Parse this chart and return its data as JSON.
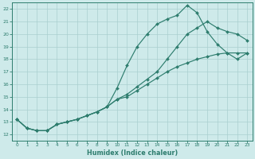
{
  "xlabel": "Humidex (Indice chaleur)",
  "xlim": [
    -0.5,
    23.5
  ],
  "ylim": [
    11.5,
    22.5
  ],
  "xticks": [
    0,
    1,
    2,
    3,
    4,
    5,
    6,
    7,
    8,
    9,
    10,
    11,
    12,
    13,
    14,
    15,
    16,
    17,
    18,
    19,
    20,
    21,
    22,
    23
  ],
  "yticks": [
    12,
    13,
    14,
    15,
    16,
    17,
    18,
    19,
    20,
    21,
    22
  ],
  "line_color": "#2e7d6e",
  "bg_color": "#ceeaea",
  "grid_color": "#aacfcf",
  "line1_x": [
    0,
    1,
    2,
    3,
    4,
    5,
    6,
    7,
    8,
    9,
    10,
    11,
    12,
    13,
    14,
    15,
    16,
    17,
    18,
    19,
    20,
    21,
    22,
    23
  ],
  "line1_y": [
    13.2,
    12.5,
    12.3,
    12.3,
    12.8,
    13.0,
    13.2,
    13.5,
    13.8,
    14.2,
    15.7,
    17.5,
    19.0,
    20.0,
    20.8,
    21.2,
    21.5,
    22.3,
    21.7,
    20.2,
    19.2,
    18.5,
    18.0,
    18.5
  ],
  "line2_x": [
    0,
    1,
    2,
    3,
    4,
    5,
    6,
    7,
    8,
    9,
    10,
    11,
    12,
    13,
    14,
    15,
    16,
    17,
    18,
    19,
    20,
    21,
    22,
    23
  ],
  "line2_y": [
    13.2,
    12.5,
    12.3,
    12.3,
    12.8,
    13.0,
    13.2,
    13.5,
    13.8,
    14.2,
    14.8,
    15.2,
    15.8,
    16.4,
    17.0,
    18.0,
    19.0,
    20.0,
    20.5,
    21.0,
    20.5,
    20.2,
    20.0,
    19.5
  ],
  "line3_x": [
    0,
    1,
    2,
    3,
    4,
    5,
    6,
    7,
    8,
    9,
    10,
    11,
    12,
    13,
    14,
    15,
    16,
    17,
    18,
    19,
    20,
    21,
    22,
    23
  ],
  "line3_y": [
    13.2,
    12.5,
    12.3,
    12.3,
    12.8,
    13.0,
    13.2,
    13.5,
    13.8,
    14.2,
    14.8,
    15.0,
    15.5,
    16.0,
    16.5,
    17.0,
    17.4,
    17.7,
    18.0,
    18.2,
    18.4,
    18.5,
    18.5,
    18.5
  ],
  "markersize": 2.0,
  "linewidth": 0.85
}
